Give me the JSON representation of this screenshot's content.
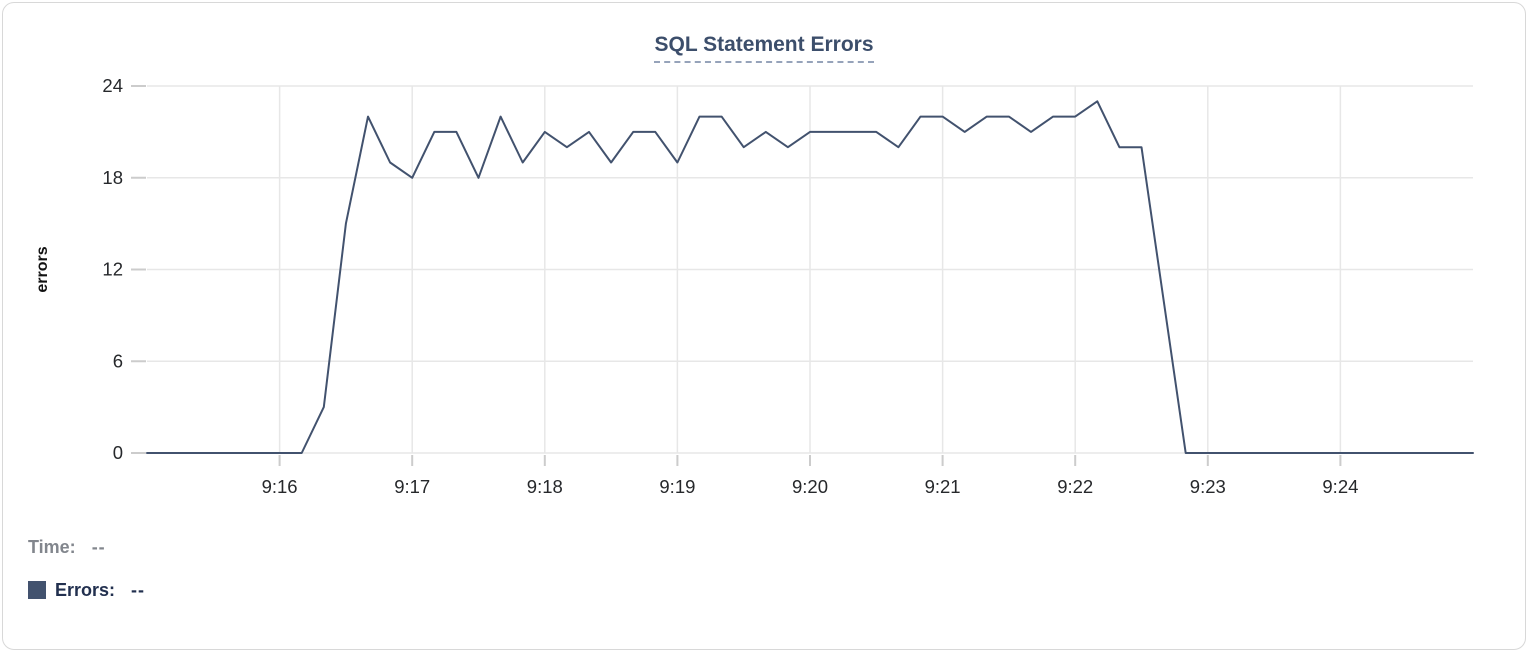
{
  "card": {
    "title": "SQL Statement Errors"
  },
  "tooltip_readout": {
    "time_label": "Time:",
    "time_value": "--",
    "errors_label": "Errors:",
    "errors_value": "--"
  },
  "colors": {
    "line": "#42526e",
    "legend_square": "#42526e",
    "title_text": "#3c4e6b",
    "title_underline": "#96a3ba",
    "time_text": "#82868d",
    "errors_text": "#22304f",
    "grid": "#e7e7e7",
    "tick": "#cccccc",
    "axis_text": "#26282b",
    "axis_label_text": "#111111",
    "background": "#ffffff",
    "card_border": "#d8d8d8"
  },
  "chart_data": {
    "type": "line",
    "title": "SQL Statement Errors",
    "xlabel": "",
    "ylabel": "errors",
    "ylim": [
      0,
      24
    ],
    "y_ticks": [
      0,
      6,
      12,
      18,
      24
    ],
    "x_ticks": [
      {
        "label": "9:16",
        "seconds": 60
      },
      {
        "label": "9:17",
        "seconds": 120
      },
      {
        "label": "9:18",
        "seconds": 180
      },
      {
        "label": "9:19",
        "seconds": 240
      },
      {
        "label": "9:20",
        "seconds": 300
      },
      {
        "label": "9:21",
        "seconds": 360
      },
      {
        "label": "9:22",
        "seconds": 420
      },
      {
        "label": "9:23",
        "seconds": 480
      },
      {
        "label": "9:24",
        "seconds": 540
      }
    ],
    "x_domain_seconds": 600,
    "x_first_point_time": "9:15:00",
    "x_last_point_time": "9:25:00",
    "point_interval_seconds": 10,
    "grid": true,
    "legend_position": "bottom-left",
    "series": [
      {
        "name": "Errors",
        "values": [
          0,
          0,
          0,
          0,
          0,
          0,
          0,
          0,
          3,
          15,
          22,
          19,
          18,
          21,
          21,
          18,
          22,
          19,
          21,
          20,
          21,
          19,
          21,
          21,
          19,
          22,
          22,
          20,
          21,
          20,
          21,
          21,
          21,
          21,
          20,
          22,
          22,
          21,
          22,
          22,
          21,
          22,
          22,
          23,
          20,
          20,
          10,
          0,
          0,
          0,
          0,
          0,
          0,
          0,
          0,
          0,
          0,
          0,
          0,
          0,
          0
        ]
      }
    ]
  }
}
